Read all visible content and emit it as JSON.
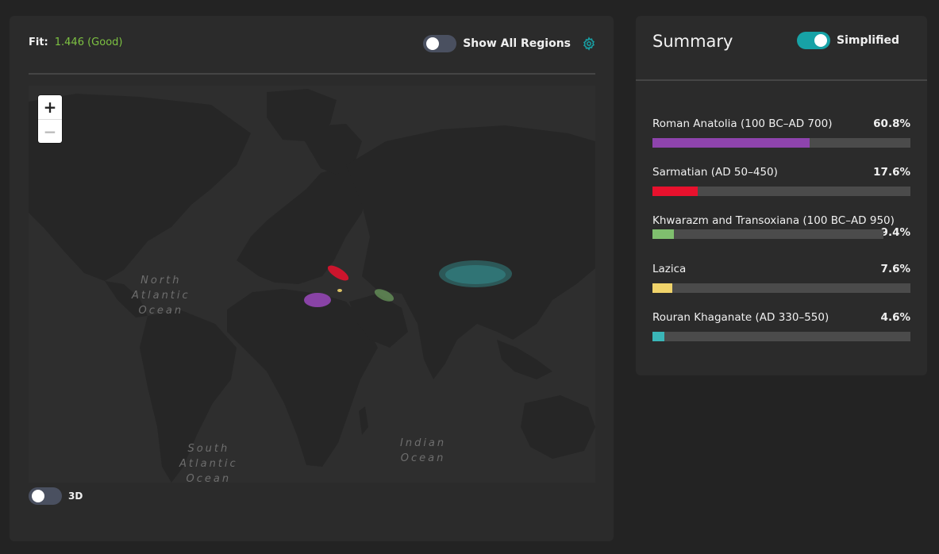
{
  "fit": {
    "label": "Fit:",
    "value": "1.446 (Good)"
  },
  "regions_toggle": {
    "label": "Show All Regions",
    "on": false
  },
  "settings_icon": "gear-icon",
  "map": {
    "zoom_in": "+",
    "zoom_out": "−",
    "ocean_labels": {
      "north_atlantic": "North\nAtlantic\nOcean",
      "south_atlantic": "South\nAtlantic\nOcean",
      "indian": "Indian\nOcean"
    }
  },
  "toggle_3d": {
    "label": "3D",
    "on": false
  },
  "summary": {
    "title": "Summary",
    "simplified_label": "Simplified",
    "simplified_on": true,
    "populations": [
      {
        "name": "Roman Anatolia (100 BC–AD 700)",
        "percent": "60.8%",
        "fraction": 0.608,
        "color": "#8e44ad"
      },
      {
        "name": "Sarmatian (AD 50–450)",
        "percent": "17.6%",
        "fraction": 0.176,
        "color": "#e8112d"
      },
      {
        "name": "Khwarazm and Transoxiana (100 BC–AD 950)",
        "percent": "9.4%",
        "fraction": 0.094,
        "color": "#7fbf6e"
      },
      {
        "name": "Lazica",
        "percent": "7.6%",
        "fraction": 0.076,
        "color": "#f0d36a"
      },
      {
        "name": "Rouran Khaganate (AD 330–550)",
        "percent": "4.6%",
        "fraction": 0.046,
        "color": "#3ab6b8"
      }
    ]
  }
}
